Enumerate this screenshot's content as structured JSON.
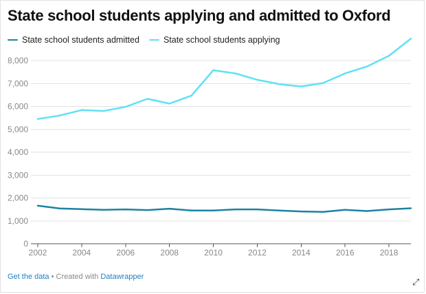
{
  "chart_data": {
    "type": "line",
    "title": "State school students applying and admitted to Oxford",
    "xlabel": "",
    "ylabel": "",
    "x": [
      2002,
      2003,
      2004,
      2005,
      2006,
      2007,
      2008,
      2009,
      2010,
      2011,
      2012,
      2013,
      2014,
      2015,
      2016,
      2017,
      2018,
      2019
    ],
    "xticks": [
      "2002",
      "2004",
      "2006",
      "2008",
      "2010",
      "2012",
      "2014",
      "2016",
      "2018"
    ],
    "yticks": [
      "0",
      "1,000",
      "2,000",
      "3,000",
      "4,000",
      "5,000",
      "6,000",
      "7,000",
      "8,000"
    ],
    "xlim": [
      2002,
      2019
    ],
    "ylim": [
      0,
      8000
    ],
    "grid": true,
    "legend": "top-left",
    "series": [
      {
        "name": "State school students admitted",
        "color": "#1d81a2",
        "values": [
          1660,
          1540,
          1510,
          1480,
          1500,
          1470,
          1530,
          1450,
          1450,
          1500,
          1500,
          1450,
          1410,
          1390,
          1480,
          1430,
          1500,
          1550
        ]
      },
      {
        "name": "State school students applying",
        "color": "#5ee1f4",
        "values": [
          5450,
          5600,
          5840,
          5800,
          5980,
          6330,
          6120,
          6470,
          7580,
          7440,
          7160,
          6970,
          6870,
          7020,
          7440,
          7740,
          8210,
          8960
        ]
      }
    ]
  },
  "footer": {
    "link1": "Get the data",
    "separator": " • Created with ",
    "link2": "Datawrapper"
  }
}
